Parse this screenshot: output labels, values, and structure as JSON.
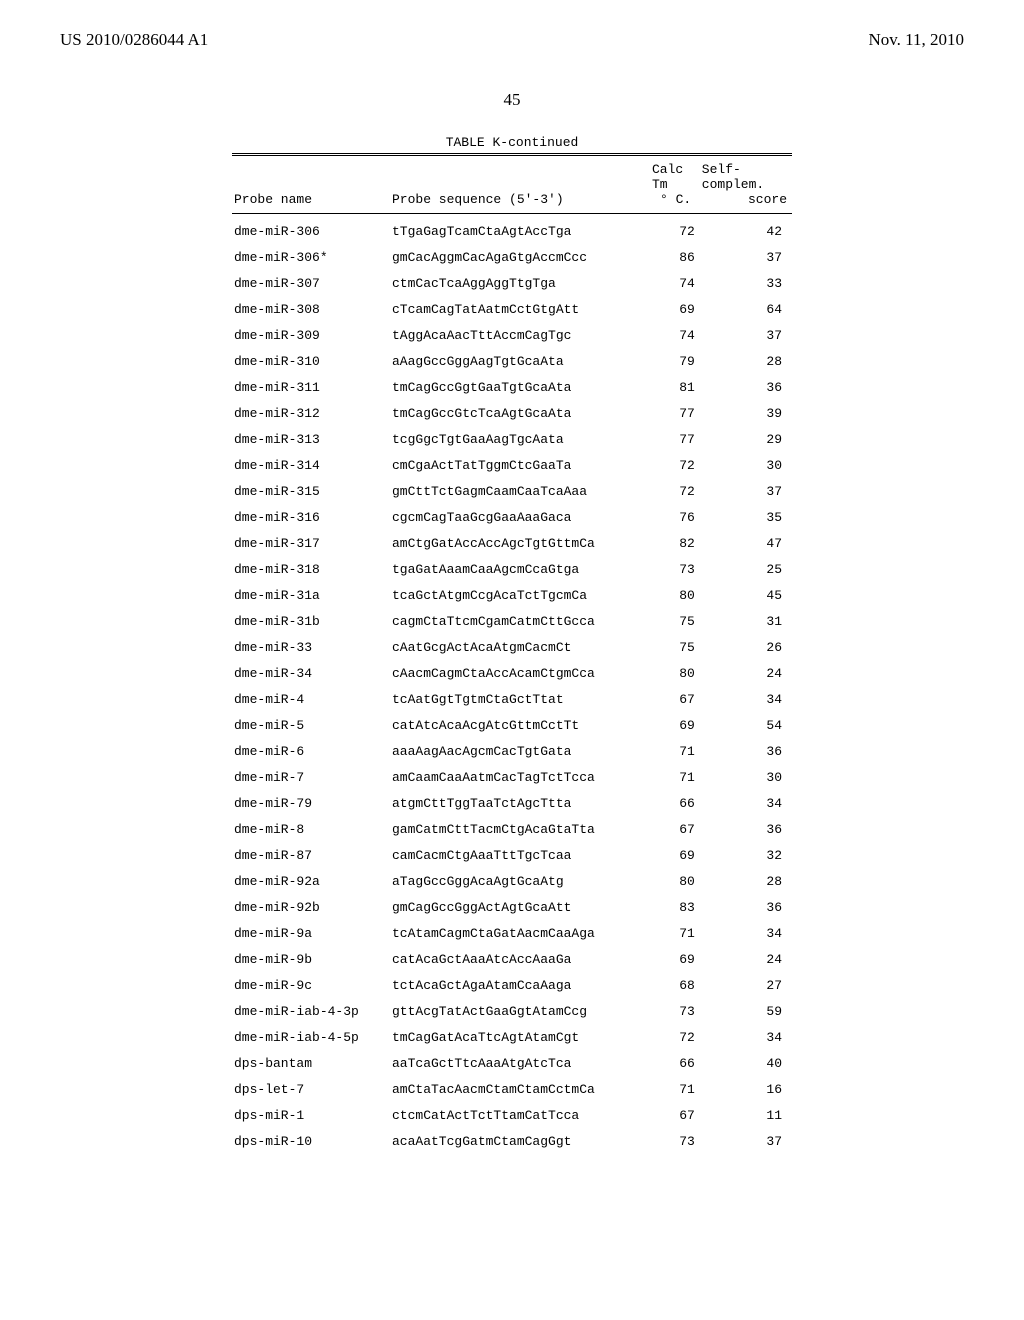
{
  "header": {
    "publication_number": "US 2010/0286044 A1",
    "date": "Nov. 11, 2010"
  },
  "page_number": "45",
  "table": {
    "title": "TABLE K-continued",
    "columns": {
      "probe_name": "Probe name",
      "sequence": "Probe sequence (5'-3')",
      "tm_line1": "Calc Tm",
      "tm_line2": "° C.",
      "score_line1": "Self-complem.",
      "score_line2": "score"
    },
    "rows": [
      {
        "name": "dme-miR-306",
        "seq": "tTgaGagTcamCtaAgtAccTga",
        "tm": "72",
        "score": "42"
      },
      {
        "name": "dme-miR-306*",
        "seq": "gmCacAggmCacAgaGtgAccmCcc",
        "tm": "86",
        "score": "37"
      },
      {
        "name": "dme-miR-307",
        "seq": "ctmCacTcaAggAggTtgTga",
        "tm": "74",
        "score": "33"
      },
      {
        "name": "dme-miR-308",
        "seq": "cTcamCagTatAatmCctGtgAtt",
        "tm": "69",
        "score": "64"
      },
      {
        "name": "dme-miR-309",
        "seq": "tAggAcaAacTttAccmCagTgc",
        "tm": "74",
        "score": "37"
      },
      {
        "name": "dme-miR-310",
        "seq": "aAagGccGggAagTgtGcaAta",
        "tm": "79",
        "score": "28"
      },
      {
        "name": "dme-miR-311",
        "seq": "tmCagGccGgtGaaTgtGcaAta",
        "tm": "81",
        "score": "36"
      },
      {
        "name": "dme-miR-312",
        "seq": "tmCagGccGtcTcaAgtGcaAta",
        "tm": "77",
        "score": "39"
      },
      {
        "name": "dme-miR-313",
        "seq": "tcgGgcTgtGaaAagTgcAata",
        "tm": "77",
        "score": "29"
      },
      {
        "name": "dme-miR-314",
        "seq": "cmCgaActTatTggmCtcGaaTa",
        "tm": "72",
        "score": "30"
      },
      {
        "name": "dme-miR-315",
        "seq": "gmCttTctGagmCaamCaaTcaAaa",
        "tm": "72",
        "score": "37"
      },
      {
        "name": "dme-miR-316",
        "seq": "cgcmCagTaaGcgGaaAaaGaca",
        "tm": "76",
        "score": "35"
      },
      {
        "name": "dme-miR-317",
        "seq": "amCtgGatAccAccAgcTgtGttmCa",
        "tm": "82",
        "score": "47"
      },
      {
        "name": "dme-miR-318",
        "seq": "tgaGatAaamCaaAgcmCcaGtga",
        "tm": "73",
        "score": "25"
      },
      {
        "name": "dme-miR-31a",
        "seq": "tcaGctAtgmCcgAcaTctTgcmCa",
        "tm": "80",
        "score": "45"
      },
      {
        "name": "dme-miR-31b",
        "seq": "cagmCtaTtcmCgamCatmCttGcca",
        "tm": "75",
        "score": "31"
      },
      {
        "name": "dme-miR-33",
        "seq": "cAatGcgActAcaAtgmCacmCt",
        "tm": "75",
        "score": "26"
      },
      {
        "name": "dme-miR-34",
        "seq": "cAacmCagmCtaAccAcamCtgmCca",
        "tm": "80",
        "score": "24"
      },
      {
        "name": "dme-miR-4",
        "seq": "tcAatGgtTgtmCtaGctTtat",
        "tm": "67",
        "score": "34"
      },
      {
        "name": "dme-miR-5",
        "seq": "catAtcAcaAcgAtcGttmCctTt",
        "tm": "69",
        "score": "54"
      },
      {
        "name": "dme-miR-6",
        "seq": "aaaAagAacAgcmCacTgtGata",
        "tm": "71",
        "score": "36"
      },
      {
        "name": "dme-miR-7",
        "seq": "amCaamCaaAatmCacTagTctTcca",
        "tm": "71",
        "score": "30"
      },
      {
        "name": "dme-miR-79",
        "seq": "atgmCttTggTaaTctAgcTtta",
        "tm": "66",
        "score": "34"
      },
      {
        "name": "dme-miR-8",
        "seq": "gamCatmCttTacmCtgAcaGtaTta",
        "tm": "67",
        "score": "36"
      },
      {
        "name": "dme-miR-87",
        "seq": "camCacmCtgAaaTttTgcTcaa",
        "tm": "69",
        "score": "32"
      },
      {
        "name": "dme-miR-92a",
        "seq": "aTagGccGggAcaAgtGcaAtg",
        "tm": "80",
        "score": "28"
      },
      {
        "name": "dme-miR-92b",
        "seq": "gmCagGccGggActAgtGcaAtt",
        "tm": "83",
        "score": "36"
      },
      {
        "name": "dme-miR-9a",
        "seq": "tcAtamCagmCtaGatAacmCaaAga",
        "tm": "71",
        "score": "34"
      },
      {
        "name": "dme-miR-9b",
        "seq": "catAcaGctAaaAtcAccAaaGa",
        "tm": "69",
        "score": "24"
      },
      {
        "name": "dme-miR-9c",
        "seq": "tctAcaGctAgaAtamCcaAaga",
        "tm": "68",
        "score": "27"
      },
      {
        "name": "dme-miR-iab-4-3p",
        "seq": "gttAcgTatActGaaGgtAtamCcg",
        "tm": "73",
        "score": "59"
      },
      {
        "name": "dme-miR-iab-4-5p",
        "seq": "tmCagGatAcaTtcAgtAtamCgt",
        "tm": "72",
        "score": "34"
      },
      {
        "name": "dps-bantam",
        "seq": "aaTcaGctTtcAaaAtgAtcTca",
        "tm": "66",
        "score": "40"
      },
      {
        "name": "dps-let-7",
        "seq": "amCtaTacAacmCtamCtamCctmCa",
        "tm": "71",
        "score": "16"
      },
      {
        "name": "dps-miR-1",
        "seq": "ctcmCatActTctTtamCatTcca",
        "tm": "67",
        "score": "11"
      },
      {
        "name": "dps-miR-10",
        "seq": "acaAatTcgGatmCtamCagGgt",
        "tm": "73",
        "score": "37"
      }
    ]
  }
}
